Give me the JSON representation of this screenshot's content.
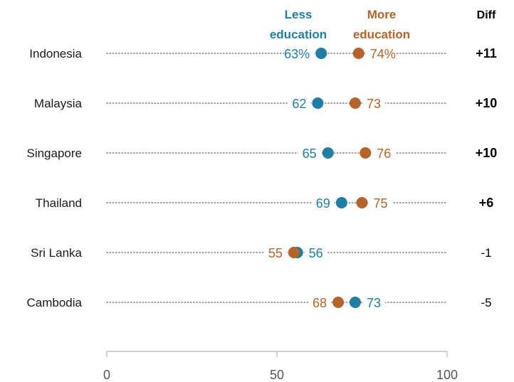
{
  "chart_data": {
    "type": "dot-plot",
    "xlim": [
      0,
      100
    ],
    "ticks": [
      0,
      50,
      100
    ],
    "legend": {
      "less": {
        "line1": "Less",
        "line2": "education"
      },
      "more": {
        "line1": "More",
        "line2": "education"
      }
    },
    "diff_header": "Diff",
    "colors": {
      "less": "#1f7ea1",
      "more": "#b5622b"
    },
    "rows": [
      {
        "country": "Indonesia",
        "less": 63,
        "more": 74,
        "less_label": "63%",
        "more_label": "74%",
        "diff": "+11",
        "significant": true
      },
      {
        "country": "Malaysia",
        "less": 62,
        "more": 73,
        "less_label": "62",
        "more_label": "73",
        "diff": "+10",
        "significant": true
      },
      {
        "country": "Singapore",
        "less": 65,
        "more": 76,
        "less_label": "65",
        "more_label": "76",
        "diff": "+10",
        "significant": true
      },
      {
        "country": "Thailand",
        "less": 69,
        "more": 75,
        "less_label": "69",
        "more_label": "75",
        "diff": "+6",
        "significant": true
      },
      {
        "country": "Sri Lanka",
        "less": 56,
        "more": 55,
        "less_label": "56",
        "more_label": "55",
        "diff": "-1",
        "significant": false
      },
      {
        "country": "Cambodia",
        "less": 73,
        "more": 68,
        "less_label": "73",
        "more_label": "68",
        "diff": "-5",
        "significant": false
      }
    ]
  }
}
